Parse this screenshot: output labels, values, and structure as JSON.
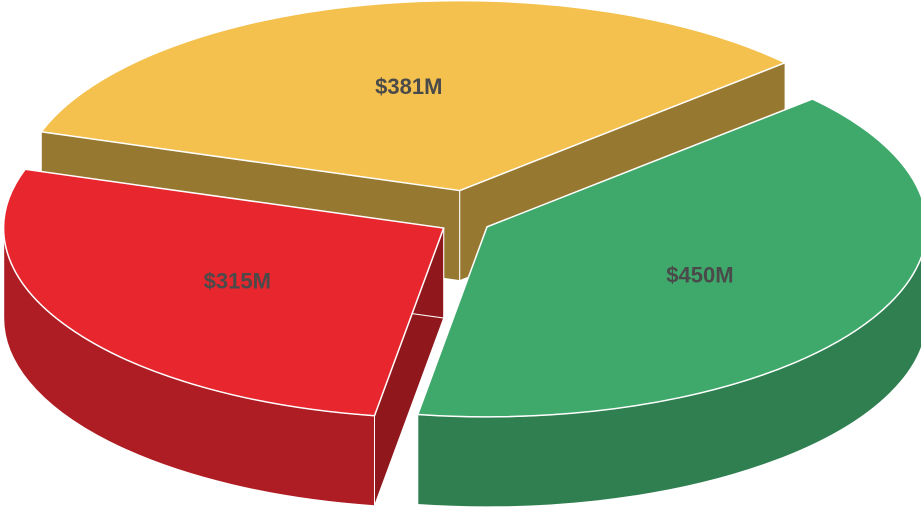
{
  "chart_data": {
    "type": "pie",
    "categories": [
      null,
      null,
      null
    ],
    "values": [
      381,
      450,
      315
    ],
    "value_labels": [
      "$381M",
      "$450M",
      "$315M"
    ],
    "colors": [
      "#f4c14e",
      "#3fa96b",
      "#e8262e"
    ]
  }
}
